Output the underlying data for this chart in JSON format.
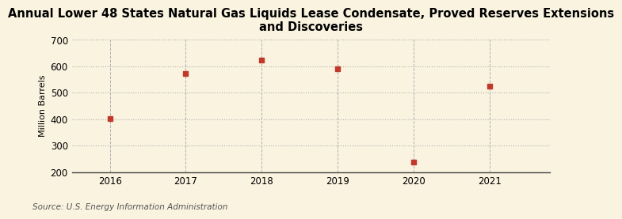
{
  "title_line1": "Annual Lower 48 States Natural Gas Liquids Lease Condensate, Proved Reserves Extensions",
  "title_line2": "and Discoveries",
  "years": [
    2016,
    2017,
    2018,
    2019,
    2020,
    2021
  ],
  "values": [
    403,
    572,
    624,
    591,
    237,
    525
  ],
  "ylabel": "Million Barrels",
  "ylim": [
    200,
    700
  ],
  "yticks": [
    200,
    300,
    400,
    500,
    600,
    700
  ],
  "xlim": [
    2015.5,
    2021.8
  ],
  "xticks": [
    2016,
    2017,
    2018,
    2019,
    2020,
    2021
  ],
  "marker_color": "#c0392b",
  "marker": "s",
  "marker_size": 4,
  "bg_color": "#faf3e0",
  "grid_color": "#b0b0b0",
  "source_text": "Source: U.S. Energy Information Administration",
  "title_fontsize": 10.5,
  "label_fontsize": 8,
  "tick_fontsize": 8.5,
  "source_fontsize": 7.5
}
